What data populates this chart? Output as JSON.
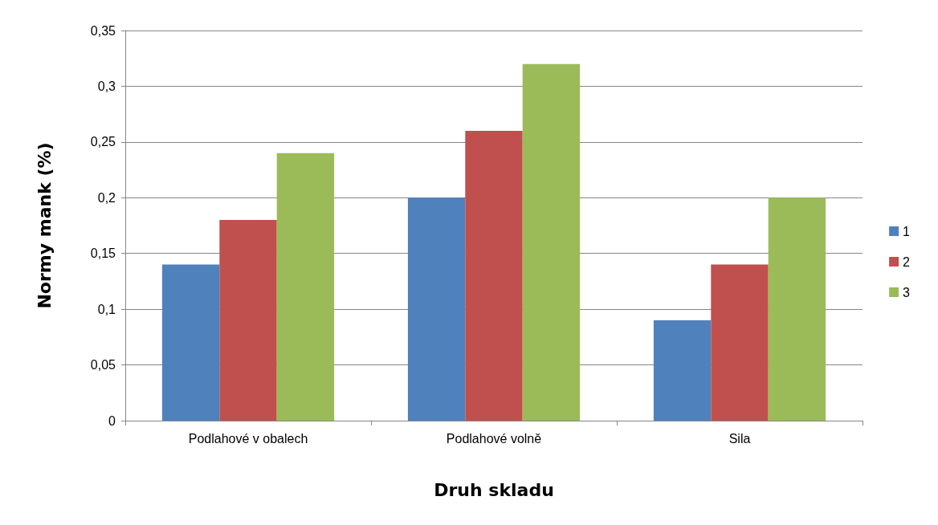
{
  "chart_data": {
    "type": "bar",
    "xlabel": "Druh skladu",
    "ylabel": "Normy mank (%)",
    "categories": [
      "Podlahové v obalech",
      "Podlahové volně",
      "Sila"
    ],
    "series": [
      {
        "name": "1",
        "color": "#4f81bd",
        "values": [
          0.14,
          0.2,
          0.09
        ]
      },
      {
        "name": "2",
        "color": "#c0504d",
        "values": [
          0.18,
          0.26,
          0.14
        ]
      },
      {
        "name": "3",
        "color": "#9bbb59",
        "values": [
          0.24,
          0.32,
          0.2
        ]
      }
    ],
    "ylim": [
      0,
      0.35
    ],
    "yticks": [
      0,
      {
        "value": 0.05,
        "label": "0,05"
      },
      {
        "value": 0.1,
        "label": "0,1"
      },
      {
        "value": 0.15,
        "label": "0,15"
      },
      {
        "value": 0.2,
        "label": "0,2"
      },
      {
        "value": 0.25,
        "label": "0,25"
      },
      {
        "value": 0.3,
        "label": "0,3"
      },
      {
        "value": 0.35,
        "label": "0,35"
      }
    ],
    "grid": "y",
    "legend": "right"
  }
}
